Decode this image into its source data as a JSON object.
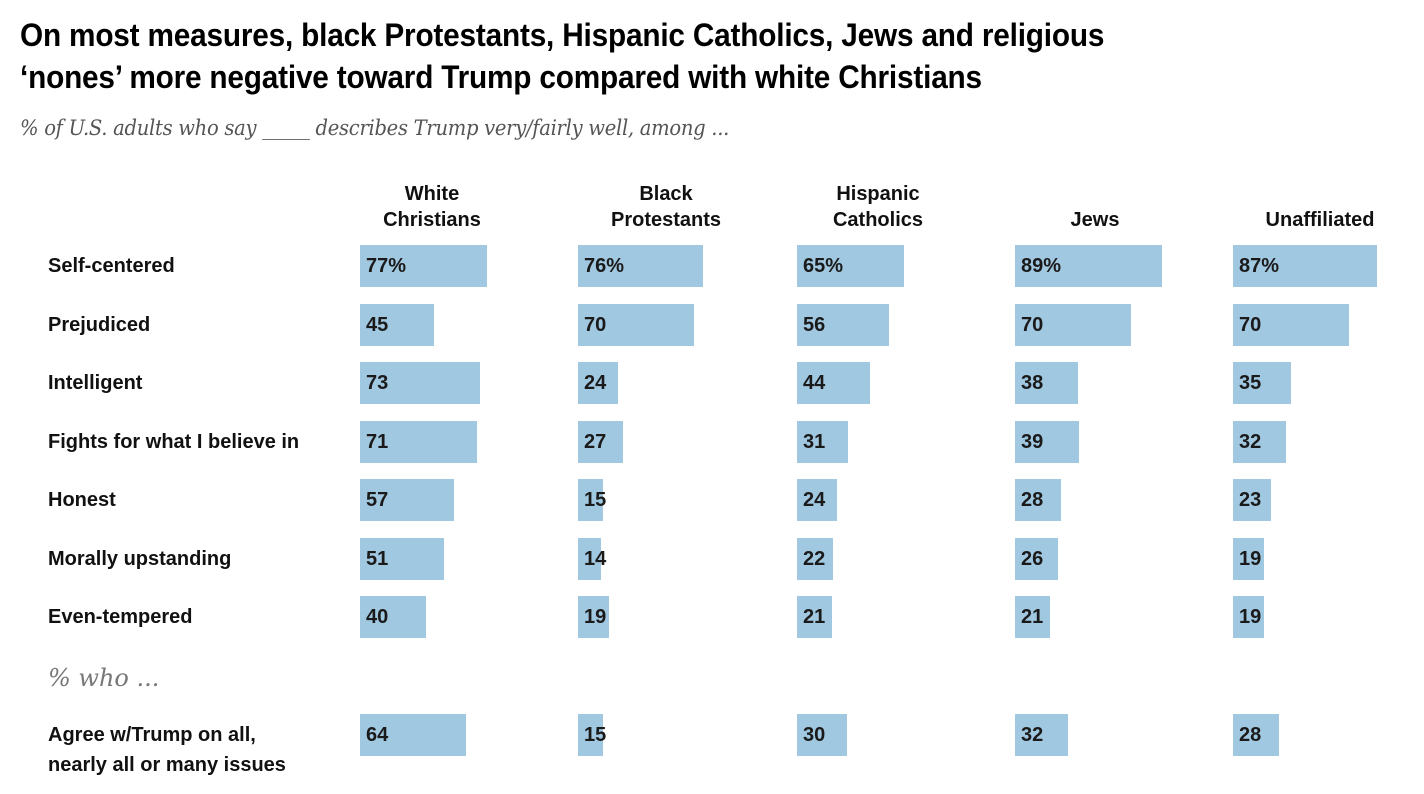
{
  "title_lines": [
    "On most measures, black Protestants, Hispanic Catholics, Jews and religious",
    "‘nones’ more negative toward Trump compared with white Christians"
  ],
  "subtitle": "% of U.S. adults who say _____ describes Trump very/fairly well, among ...",
  "section_label": "% who ...",
  "colors": {
    "bar": "#a1c8e1",
    "text": "#111111",
    "subtitle": "#555555"
  },
  "chart_data": {
    "type": "bar",
    "orientation": "horizontal",
    "layout": "small-multiples",
    "title": "On most measures, black Protestants, Hispanic Catholics, Jews and religious ‘nones’ more negative toward Trump compared with white Christians",
    "subtitle": "% of U.S. adults who say _____ describes Trump very/fairly well, among ...",
    "xlim": [
      0,
      100
    ],
    "grid": false,
    "legend": "none",
    "groups": [
      {
        "line1": "White",
        "line2": "Christians",
        "name": "White Christians"
      },
      {
        "line1": "Black",
        "line2": "Protestants",
        "name": "Black Protestants"
      },
      {
        "line1": "Hispanic",
        "line2": "Catholics",
        "name": "Hispanic Catholics"
      },
      {
        "line1": "",
        "line2": "Jews",
        "name": "Jews"
      },
      {
        "line1": "",
        "line2": "Unaffiliated",
        "name": "Unaffiliated"
      }
    ],
    "categories": [
      "Self-centered",
      "Prejudiced",
      "Intelligent",
      "Fights for what I believe in",
      "Honest",
      "Morally upstanding",
      "Even-tempered",
      "Agree w/Trump on all, nearly all or many issues"
    ],
    "category_lines": [
      [
        "Self-centered"
      ],
      [
        "Prejudiced"
      ],
      [
        "Intelligent"
      ],
      [
        "Fights for what I believe in"
      ],
      [
        "Honest"
      ],
      [
        "Morally upstanding"
      ],
      [
        "Even-tempered"
      ],
      [
        "Agree w/Trump on all,",
        "nearly all or many issues"
      ]
    ],
    "series": [
      {
        "name": "White Christians",
        "values": [
          77,
          45,
          73,
          71,
          57,
          51,
          40,
          64
        ]
      },
      {
        "name": "Black Protestants",
        "values": [
          76,
          70,
          24,
          27,
          15,
          14,
          19,
          15
        ]
      },
      {
        "name": "Hispanic Catholics",
        "values": [
          65,
          56,
          44,
          31,
          24,
          22,
          21,
          30
        ]
      },
      {
        "name": "Jews",
        "values": [
          89,
          70,
          38,
          39,
          28,
          26,
          21,
          32
        ]
      },
      {
        "name": "Unaffiliated",
        "values": [
          87,
          70,
          35,
          32,
          23,
          19,
          19,
          28
        ]
      }
    ],
    "first_row_suffix": "%"
  }
}
